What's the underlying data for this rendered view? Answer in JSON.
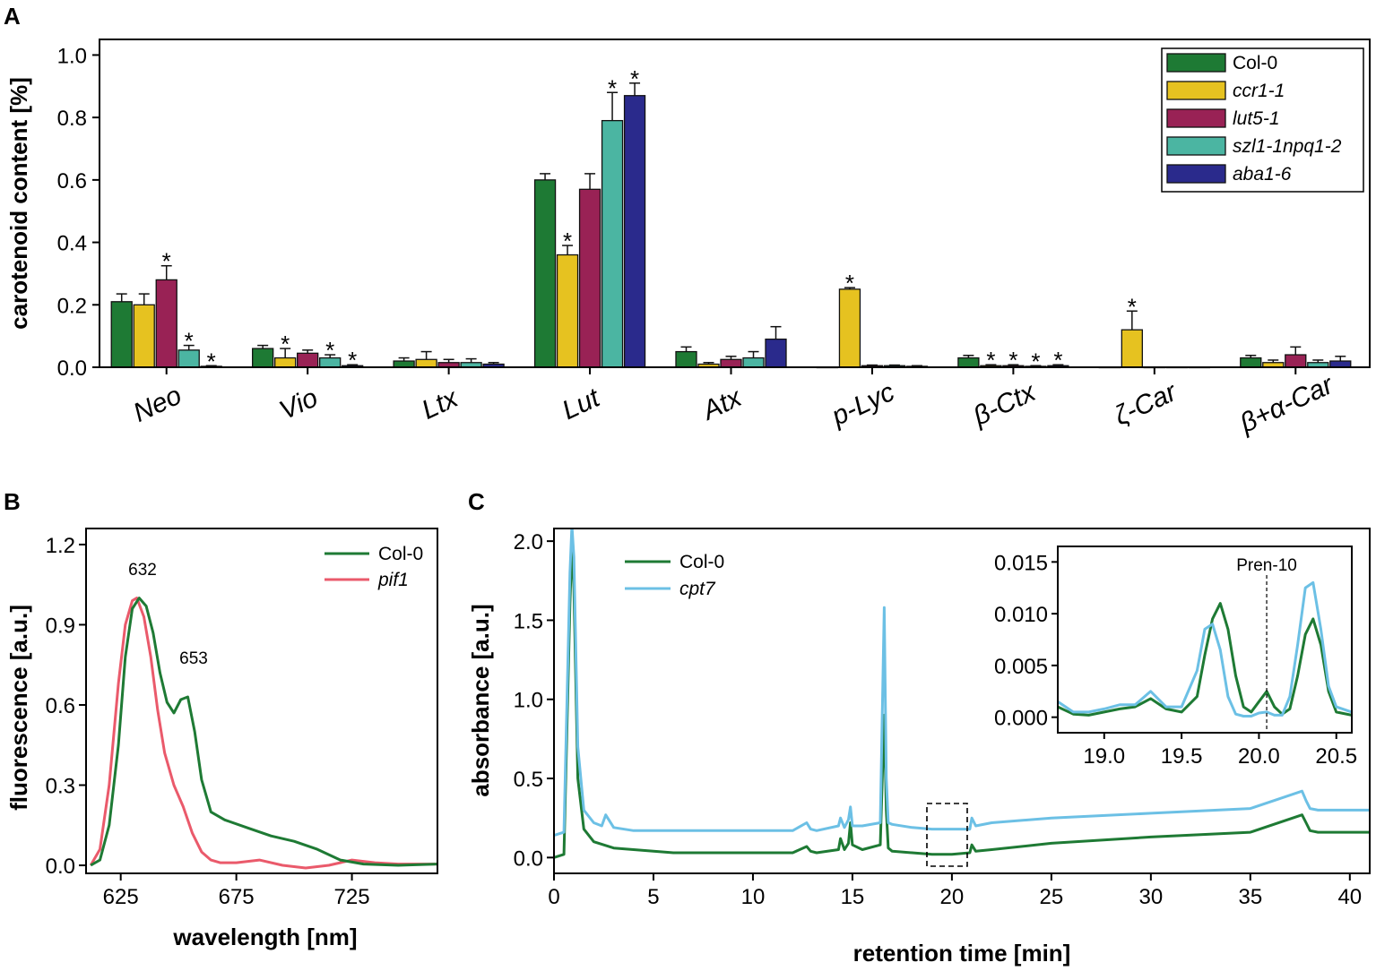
{
  "panels": {
    "a": "A",
    "b": "B",
    "c": "C"
  },
  "chart_data": [
    {
      "id": "A",
      "type": "bar",
      "ylabel": "carotenoid content [%]",
      "ylim": [
        0,
        1.05
      ],
      "yticks": [
        "0.0",
        "0.2",
        "0.4",
        "0.6",
        "0.8",
        "1.0"
      ],
      "categories": [
        "Neo",
        "Vio",
        "Ltx",
        "Lut",
        "Atx",
        "p-Lyc",
        "β-Ctx",
        "ζ-Car",
        "β+α-Car"
      ],
      "series": [
        {
          "name": "Col-0",
          "italic": false,
          "color": "#1e7a34",
          "values": [
            0.21,
            0.06,
            0.02,
            0.6,
            0.05,
            0.0,
            0.03,
            0.0,
            0.03
          ],
          "errors": [
            0.025,
            0.01,
            0.01,
            0.02,
            0.015,
            0.0,
            0.008,
            0.0,
            0.008
          ],
          "stars": [
            false,
            false,
            false,
            false,
            false,
            false,
            false,
            false,
            false
          ]
        },
        {
          "name": "ccr1-1",
          "italic": true,
          "color": "#e6c220",
          "values": [
            0.2,
            0.03,
            0.025,
            0.36,
            0.01,
            0.25,
            0.005,
            0.12,
            0.015
          ],
          "errors": [
            0.035,
            0.03,
            0.025,
            0.03,
            0.005,
            0.005,
            0.003,
            0.06,
            0.008
          ],
          "stars": [
            false,
            true,
            false,
            true,
            false,
            true,
            true,
            true,
            false
          ]
        },
        {
          "name": "lut5-1",
          "italic": true,
          "color": "#992255",
          "values": [
            0.28,
            0.045,
            0.015,
            0.57,
            0.025,
            0.005,
            0.005,
            0.0,
            0.04
          ],
          "errors": [
            0.045,
            0.01,
            0.01,
            0.05,
            0.01,
            0.002,
            0.003,
            0.0,
            0.025
          ],
          "stars": [
            true,
            false,
            false,
            false,
            false,
            false,
            true,
            false,
            false
          ]
        },
        {
          "name": "szl1-1npq1-2",
          "italic": true,
          "color": "#4bb5a2",
          "values": [
            0.055,
            0.03,
            0.015,
            0.79,
            0.03,
            0.005,
            0.003,
            0.0,
            0.015
          ],
          "errors": [
            0.015,
            0.01,
            0.012,
            0.09,
            0.02,
            0.002,
            0.002,
            0.0,
            0.008
          ],
          "stars": [
            true,
            true,
            false,
            true,
            false,
            false,
            true,
            false,
            false
          ]
        },
        {
          "name": "aba1-6",
          "italic": true,
          "color": "#2a2a8c",
          "values": [
            0.003,
            0.005,
            0.01,
            0.87,
            0.09,
            0.003,
            0.005,
            0.0,
            0.02
          ],
          "errors": [
            0.002,
            0.003,
            0.005,
            0.04,
            0.04,
            0.002,
            0.003,
            0.0,
            0.015
          ],
          "stars": [
            true,
            true,
            false,
            true,
            false,
            false,
            true,
            false,
            false
          ]
        }
      ],
      "star_symbol": "*"
    },
    {
      "id": "B",
      "type": "line",
      "xlabel": "wavelength [nm]",
      "ylabel": "fluorescence [a.u.]",
      "xlim": [
        610,
        762
      ],
      "ylim": [
        -0.03,
        1.26
      ],
      "xticks": [
        "625",
        "675",
        "725"
      ],
      "yticks": [
        "0.0",
        "0.3",
        "0.6",
        "0.9",
        "1.2"
      ],
      "annotations": [
        "632",
        "653"
      ],
      "series": [
        {
          "name": "Col-0",
          "italic": false,
          "color": "#1e7a34",
          "x": [
            612,
            616,
            620,
            624,
            627,
            630,
            633,
            636,
            639,
            642,
            645,
            648,
            651,
            654,
            657,
            660,
            664,
            670,
            680,
            690,
            700,
            710,
            720,
            730,
            745,
            762
          ],
          "y": [
            0.0,
            0.02,
            0.15,
            0.45,
            0.78,
            0.96,
            1.0,
            0.97,
            0.87,
            0.72,
            0.61,
            0.57,
            0.62,
            0.63,
            0.5,
            0.32,
            0.2,
            0.17,
            0.14,
            0.11,
            0.09,
            0.06,
            0.02,
            0.005,
            0.0,
            0.005
          ]
        },
        {
          "name": "pif1",
          "italic": true,
          "color": "#ea5a6b",
          "x": [
            612,
            616,
            620,
            624,
            627,
            630,
            632,
            635,
            638,
            641,
            644,
            648,
            652,
            656,
            660,
            664,
            668,
            675,
            685,
            695,
            705,
            715,
            725,
            735,
            745,
            762
          ],
          "y": [
            0.0,
            0.06,
            0.3,
            0.68,
            0.9,
            0.99,
            1.0,
            0.93,
            0.78,
            0.58,
            0.42,
            0.3,
            0.22,
            0.12,
            0.05,
            0.02,
            0.01,
            0.01,
            0.02,
            0.0,
            -0.01,
            0.0,
            0.02,
            0.01,
            0.005,
            0.005
          ]
        }
      ]
    },
    {
      "id": "C",
      "type": "line",
      "xlabel": "retention time [min]",
      "ylabel": "absorbance [a.u.]",
      "xlim": [
        0,
        41
      ],
      "ylim": [
        -0.1,
        2.08
      ],
      "xticks": [
        "0",
        "5",
        "10",
        "15",
        "20",
        "25",
        "30",
        "35",
        "40"
      ],
      "yticks": [
        "0.0",
        "0.5",
        "1.0",
        "1.5",
        "2.0"
      ],
      "series": [
        {
          "name": "Col-0",
          "italic": false,
          "color": "#1e7a34",
          "x": [
            0,
            0.5,
            0.8,
            0.9,
            1.0,
            1.2,
            1.5,
            2.0,
            2.5,
            3.0,
            4.0,
            6.0,
            8.0,
            10.0,
            12.0,
            12.7,
            12.9,
            13.2,
            14.3,
            14.4,
            14.6,
            14.8,
            14.9,
            15.0,
            15.5,
            16.4,
            16.6,
            16.7,
            16.8,
            17.0,
            18.0,
            19.0,
            20.0,
            20.9,
            21.0,
            21.2,
            22.0,
            25.0,
            30.0,
            35.0,
            37.6,
            37.8,
            38.0,
            38.4,
            41.0
          ],
          "y": [
            0.0,
            0.02,
            1.6,
            2.0,
            1.7,
            0.5,
            0.18,
            0.1,
            0.08,
            0.06,
            0.05,
            0.03,
            0.03,
            0.03,
            0.03,
            0.07,
            0.04,
            0.03,
            0.05,
            0.12,
            0.05,
            0.09,
            0.22,
            0.08,
            0.05,
            0.08,
            0.9,
            0.3,
            0.06,
            0.04,
            0.03,
            0.02,
            0.02,
            0.03,
            0.08,
            0.04,
            0.05,
            0.09,
            0.13,
            0.16,
            0.27,
            0.22,
            0.17,
            0.16,
            0.16
          ]
        },
        {
          "name": "cpt7",
          "italic": true,
          "color": "#6cc0e5",
          "x": [
            0,
            0.5,
            0.8,
            0.9,
            1.0,
            1.2,
            1.5,
            2.0,
            2.4,
            2.6,
            3.0,
            4.0,
            6.0,
            8.0,
            10.0,
            12.0,
            12.7,
            12.9,
            13.2,
            14.3,
            14.4,
            14.6,
            14.8,
            14.9,
            15.0,
            15.5,
            16.4,
            16.6,
            16.7,
            16.8,
            17.0,
            18.0,
            19.0,
            20.0,
            20.9,
            21.0,
            21.2,
            22.0,
            25.0,
            30.0,
            35.0,
            37.6,
            37.8,
            38.0,
            38.4,
            41.0
          ],
          "y": [
            0.14,
            0.16,
            1.8,
            2.1,
            1.9,
            0.7,
            0.3,
            0.22,
            0.2,
            0.27,
            0.19,
            0.17,
            0.17,
            0.17,
            0.17,
            0.17,
            0.22,
            0.18,
            0.17,
            0.2,
            0.25,
            0.19,
            0.24,
            0.32,
            0.2,
            0.2,
            0.22,
            1.58,
            0.5,
            0.22,
            0.21,
            0.19,
            0.18,
            0.18,
            0.18,
            0.25,
            0.2,
            0.22,
            0.25,
            0.28,
            0.31,
            0.42,
            0.36,
            0.31,
            0.3,
            0.3
          ]
        }
      ],
      "inset": {
        "xlim": [
          18.7,
          20.6
        ],
        "ylim": [
          -0.0015,
          0.0165
        ],
        "xticks": [
          "19.0",
          "19.5",
          "20.0",
          "20.5"
        ],
        "yticks": [
          "0.000",
          "0.005",
          "0.010",
          "0.015"
        ],
        "marker_label": "Pren-10",
        "marker_x": 20.05,
        "series": [
          {
            "name": "Col-0",
            "color": "#1e7a34",
            "x": [
              18.7,
              18.8,
              18.9,
              19.0,
              19.1,
              19.2,
              19.3,
              19.4,
              19.5,
              19.6,
              19.65,
              19.7,
              19.75,
              19.8,
              19.85,
              19.9,
              19.95,
              20.0,
              20.05,
              20.1,
              20.15,
              20.2,
              20.25,
              20.3,
              20.35,
              20.4,
              20.45,
              20.5,
              20.6
            ],
            "y": [
              0.001,
              0.0003,
              0.0002,
              0.0005,
              0.0008,
              0.001,
              0.0018,
              0.0008,
              0.0005,
              0.002,
              0.006,
              0.0095,
              0.011,
              0.0085,
              0.004,
              0.001,
              0.0005,
              0.0015,
              0.0025,
              0.001,
              0.0003,
              0.0008,
              0.004,
              0.008,
              0.0095,
              0.007,
              0.0025,
              0.0005,
              0.0002
            ]
          },
          {
            "name": "cpt7",
            "color": "#6cc0e5",
            "x": [
              18.7,
              18.8,
              18.9,
              19.0,
              19.1,
              19.2,
              19.3,
              19.4,
              19.5,
              19.6,
              19.65,
              19.7,
              19.75,
              19.8,
              19.85,
              19.9,
              19.95,
              20.0,
              20.05,
              20.1,
              20.15,
              20.2,
              20.25,
              20.3,
              20.35,
              20.4,
              20.45,
              20.5,
              20.6
            ],
            "y": [
              0.0015,
              0.0005,
              0.0005,
              0.0008,
              0.0012,
              0.0012,
              0.0025,
              0.001,
              0.001,
              0.0045,
              0.0085,
              0.009,
              0.0065,
              0.002,
              0.0003,
              0.0001,
              0.0001,
              0.0004,
              0.0005,
              0.0002,
              0.0002,
              0.002,
              0.007,
              0.0125,
              0.013,
              0.0085,
              0.003,
              0.001,
              0.0005
            ]
          }
        ]
      }
    }
  ]
}
